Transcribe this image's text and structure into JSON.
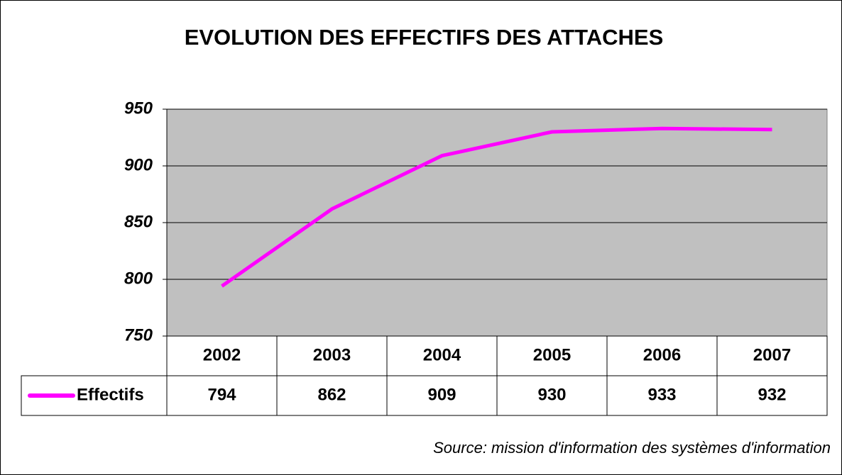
{
  "chart_data": {
    "type": "line",
    "title": "EVOLUTION DES EFFECTIFS DES ATTACHES",
    "categories": [
      "2002",
      "2003",
      "2004",
      "2005",
      "2006",
      "2007"
    ],
    "series": [
      {
        "name": "Effectifs",
        "color": "#ff00ff",
        "values": [
          794,
          862,
          909,
          930,
          933,
          932
        ]
      }
    ],
    "ylim": [
      750,
      950
    ],
    "yticks": [
      750,
      800,
      850,
      900,
      950
    ],
    "grid": true,
    "plot_background": "#c0c0c0",
    "source": "Source: mission d'information des systèmes d'information"
  }
}
